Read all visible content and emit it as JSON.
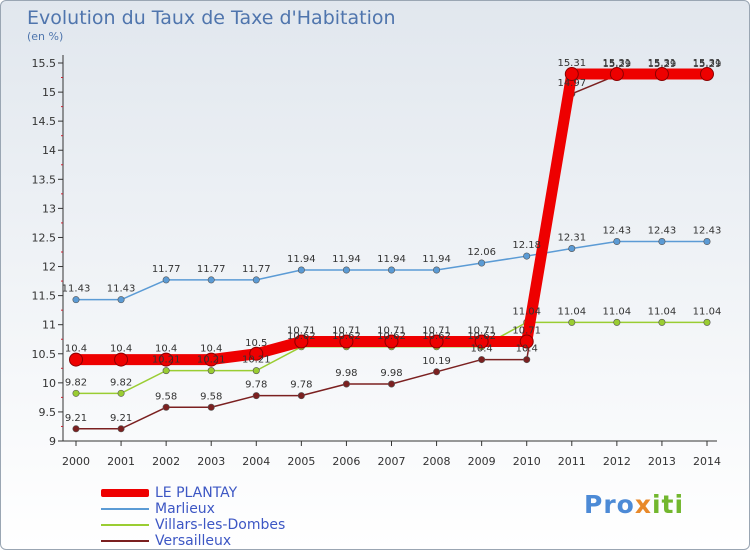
{
  "header": {
    "title": "Evolution du Taux de Taxe d'Habitation",
    "subtitle": "(en %)"
  },
  "logo": {
    "part1": "Pro",
    "part2": "x",
    "part3": "iti"
  },
  "chart_data": {
    "type": "line",
    "title": "Evolution du Taux de Taxe d'Habitation",
    "ylabel": "(en %)",
    "xlabel": "",
    "x": [
      "2000",
      "2001",
      "2002",
      "2003",
      "2004",
      "2005",
      "2006",
      "2007",
      "2008",
      "2009",
      "2010",
      "2011",
      "2012",
      "2013",
      "2014"
    ],
    "ylim": [
      9,
      15.5
    ],
    "yticks": [
      9,
      9.5,
      10,
      10.5,
      11,
      11.5,
      12,
      12.5,
      13,
      13.5,
      14,
      14.5,
      15,
      15.5
    ],
    "ytick_labels": [
      "9",
      "9.5",
      "10",
      "10.5",
      "11",
      "11.5",
      "12",
      "12.5",
      "13",
      "13.5",
      "14",
      "14.5",
      "15",
      "15.5"
    ],
    "grid": false,
    "legend": "bottom-left",
    "series": [
      {
        "name": "LE PLANTAY",
        "color": "#ee0000",
        "values": [
          10.4,
          10.4,
          10.4,
          10.4,
          10.5,
          10.71,
          10.71,
          10.71,
          10.71,
          10.71,
          10.71,
          15.31,
          15.31,
          15.31,
          15.31
        ],
        "labels": [
          "10.4",
          "10.4",
          "10.4",
          "10.4",
          "10.5",
          "10.71",
          "10.71",
          "10.71",
          "10.71",
          "10.71",
          "10.71",
          "15.31",
          "15.31",
          "15.31",
          "15.31"
        ]
      },
      {
        "name": "Marlieux",
        "color": "#5b9bd5",
        "values": [
          11.43,
          11.43,
          11.77,
          11.77,
          11.77,
          11.94,
          11.94,
          11.94,
          11.94,
          12.06,
          12.18,
          12.31,
          12.43,
          12.43,
          12.43
        ],
        "labels": [
          "11.43",
          "11.43",
          "11.77",
          "11.77",
          "11.77",
          "11.94",
          "11.94",
          "11.94",
          "11.94",
          "12.06",
          "12.18",
          "12.31",
          "12.43",
          "12.43",
          "12.43"
        ]
      },
      {
        "name": "Villars-les-Dombes",
        "color": "#9acd32",
        "values": [
          9.82,
          9.82,
          10.21,
          10.21,
          10.21,
          10.62,
          10.62,
          10.62,
          10.62,
          10.62,
          11.04,
          11.04,
          11.04,
          11.04,
          11.04
        ],
        "labels": [
          "9.82",
          "9.82",
          "10.21",
          "10.21",
          "10.21",
          "10.62",
          "10.62",
          "10.62",
          "10.62",
          "10.62",
          "11.04",
          "11.04",
          "11.04",
          "11.04",
          "11.04"
        ]
      },
      {
        "name": "Versailleux",
        "color": "#7b2020",
        "values": [
          9.21,
          9.21,
          9.58,
          9.58,
          9.78,
          9.78,
          9.98,
          9.98,
          10.19,
          10.4,
          10.4,
          14.97,
          15.29,
          15.29,
          15.29
        ],
        "labels": [
          "9.21",
          "9.21",
          "9.58",
          "9.58",
          "9.78",
          "9.78",
          "9.98",
          "9.98",
          "10.19",
          "10.4",
          "10.4",
          "14.97",
          "15.29",
          "15.29",
          "15.29"
        ]
      }
    ]
  }
}
